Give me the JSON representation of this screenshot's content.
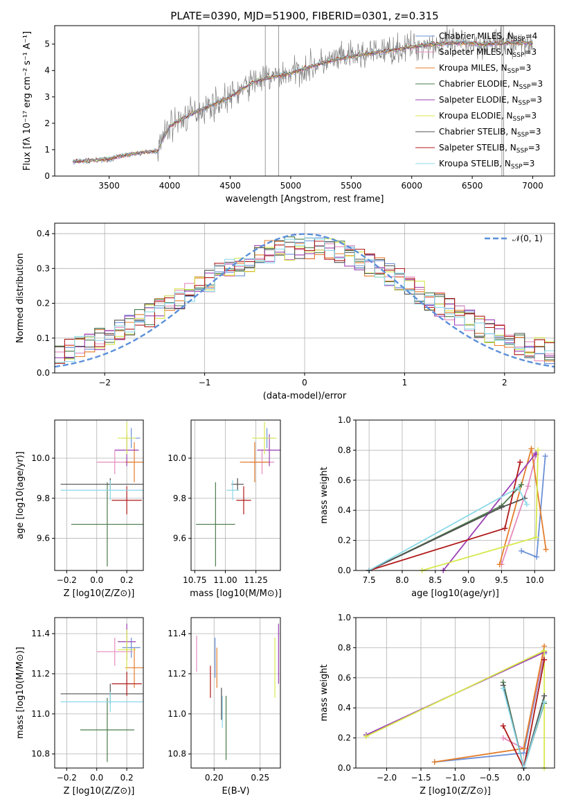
{
  "figure_title": "PLATE=0390, MJD=51900, FIBERID=0301, z=0.315",
  "colors": {
    "Chabrier MILES": "#6a8fd6",
    "Salpeter MILES": "#e48bbd",
    "Kroupa MILES": "#e37d2b",
    "Chabrier ELODIE": "#4a7a4a",
    "Salpeter ELODIE": "#9b3fb3",
    "Kroupa ELODIE": "#d6e84a",
    "Chabrier STELIB": "#505050",
    "Salpeter STELIB": "#b01818",
    "Kroupa STELIB": "#8ad8e8",
    "normal": "#5b8fd9"
  },
  "chart_data": [
    {
      "id": "spectrum",
      "type": "line",
      "title": "PLATE=0390, MJD=51900, FIBERID=0301, z=0.315",
      "xlabel": "wavelength [Angstrom, rest frame]",
      "ylabel": "Flux [fλ 10⁻¹⁷ erg cm⁻² s⁻¹ A⁻¹]",
      "xlim": [
        3050,
        7180
      ],
      "ylim": [
        0,
        5.7
      ],
      "xticks": [
        3500,
        4000,
        4500,
        5000,
        5500,
        6000,
        6500,
        7000
      ],
      "yticks": [
        0,
        1,
        2,
        3,
        4,
        5
      ],
      "grid": false,
      "legend": "top-right",
      "legend_entries": [
        "Chabrier MILES, N_SSP=4",
        "Salpeter MILES, N_SSP=3",
        "Kroupa MILES, N_SSP=3",
        "Chabrier ELODIE, N_SSP=3",
        "Salpeter ELODIE, N_SSP=3",
        "Kroupa ELODIE, N_SSP=3",
        "Chabrier STELIB, N_SSP=3",
        "Salpeter STELIB, N_SSP=3",
        "Kroupa STELIB, N_SSP=3"
      ],
      "continuum_points": {
        "x": [
          3200,
          3400,
          3500,
          3700,
          3900,
          4000,
          4200,
          4500,
          4700,
          5000,
          5200,
          5400,
          5600,
          5800,
          6000,
          6200,
          6400,
          6600,
          6800,
          7000
        ],
        "y": [
          0.55,
          0.6,
          0.65,
          0.85,
          0.95,
          1.9,
          2.4,
          3.0,
          3.6,
          3.9,
          4.2,
          4.45,
          4.6,
          4.75,
          4.9,
          5.0,
          5.05,
          5.0,
          5.05,
          5.05
        ]
      },
      "spikes": [
        {
          "x": 4240,
          "y": 5.7
        },
        {
          "x": 4790,
          "y": 5.7
        },
        {
          "x": 4900,
          "y": 5.7
        },
        {
          "x": 6745,
          "y": 5.7
        },
        {
          "x": 6760,
          "y": 5.7
        }
      ]
    },
    {
      "id": "residuals",
      "type": "step",
      "xlabel": "(data-model)/error",
      "ylabel": "Normed distribution",
      "xlim": [
        -2.5,
        2.5
      ],
      "ylim": [
        0,
        0.43
      ],
      "xticks": [
        -2,
        -1,
        0,
        1,
        2
      ],
      "yticks": [
        0.0,
        0.1,
        0.2,
        0.3,
        0.4
      ],
      "grid": true,
      "legend": "top-right",
      "legend_entries": [
        "𝒩(0, 1)"
      ]
    },
    {
      "id": "age_vs_Z",
      "type": "errorbar",
      "xlabel": "Z [log10(Z/Z⊙)]",
      "ylabel": "age [log10(age/yr)]",
      "xlim": [
        -0.28,
        0.31
      ],
      "ylim": [
        9.44,
        10.19
      ],
      "xticks": [
        -0.2,
        0.0,
        0.2
      ],
      "yticks": [
        9.6,
        9.8,
        10.0
      ],
      "grid": true,
      "points": [
        {
          "model": "Chabrier MILES",
          "x": 0.23,
          "y": 10.1,
          "xerr": 0.06,
          "yerr": 0.05
        },
        {
          "model": "Salpeter MILES",
          "x": 0.12,
          "y": 9.98,
          "xerr": 0.12,
          "yerr": 0.06
        },
        {
          "model": "Kroupa MILES",
          "x": 0.25,
          "y": 9.98,
          "xerr": 0.06,
          "yerr": 0.1
        },
        {
          "model": "Chabrier ELODIE",
          "x": 0.07,
          "y": 9.67,
          "xerr": 0.24,
          "yerr": 0.21
        },
        {
          "model": "Salpeter ELODIE",
          "x": 0.2,
          "y": 10.04,
          "xerr": 0.08,
          "yerr": 0.08
        },
        {
          "model": "Kroupa ELODIE",
          "x": 0.2,
          "y": 10.1,
          "xerr": 0.06,
          "yerr": 0.08
        },
        {
          "model": "Chabrier STELIB",
          "x": 0.09,
          "y": 9.87,
          "xerr": 0.33,
          "yerr": 0.03
        },
        {
          "model": "Salpeter STELIB",
          "x": 0.2,
          "y": 9.79,
          "xerr": 0.1,
          "yerr": 0.07
        },
        {
          "model": "Kroupa STELIB",
          "x": 0.09,
          "y": 9.84,
          "xerr": 0.33,
          "yerr": 0.05
        }
      ]
    },
    {
      "id": "age_vs_mass",
      "type": "errorbar",
      "xlabel": "mass [log10(M/M⊙)]",
      "ylabel": "",
      "xlim": [
        10.72,
        11.45
      ],
      "ylim": [
        9.44,
        10.19
      ],
      "xticks": [
        10.75,
        11.0,
        11.25
      ],
      "yticks": [
        9.6,
        9.8,
        10.0
      ],
      "grid": true,
      "points": [
        {
          "model": "Chabrier MILES",
          "x": 11.34,
          "y": 10.1,
          "xerr": 0.06,
          "yerr": 0.05
        },
        {
          "model": "Salpeter MILES",
          "x": 11.3,
          "y": 9.98,
          "xerr": 0.1,
          "yerr": 0.06
        },
        {
          "model": "Kroupa MILES",
          "x": 11.24,
          "y": 9.98,
          "xerr": 0.12,
          "yerr": 0.1
        },
        {
          "model": "Chabrier ELODIE",
          "x": 10.92,
          "y": 9.67,
          "xerr": 0.16,
          "yerr": 0.21
        },
        {
          "model": "Salpeter ELODIE",
          "x": 11.36,
          "y": 10.04,
          "xerr": 0.1,
          "yerr": 0.08
        },
        {
          "model": "Kroupa ELODIE",
          "x": 11.32,
          "y": 10.1,
          "xerr": 0.1,
          "yerr": 0.08
        },
        {
          "model": "Chabrier STELIB",
          "x": 11.1,
          "y": 9.87,
          "xerr": 0.05,
          "yerr": 0.03
        },
        {
          "model": "Salpeter STELIB",
          "x": 11.15,
          "y": 9.79,
          "xerr": 0.06,
          "yerr": 0.07
        },
        {
          "model": "Kroupa STELIB",
          "x": 11.06,
          "y": 9.84,
          "xerr": 0.05,
          "yerr": 0.05
        }
      ]
    },
    {
      "id": "mass_weight_vs_age",
      "type": "line",
      "xlabel": "age [log10(age/yr)]",
      "ylabel": "mass weight",
      "xlim": [
        7.3,
        10.3
      ],
      "ylim": [
        0,
        1.0
      ],
      "xticks": [
        7.5,
        8.0,
        8.5,
        9.0,
        9.5,
        10.0
      ],
      "yticks": [
        0.0,
        0.2,
        0.4,
        0.6,
        0.8,
        1.0
      ],
      "grid": true,
      "series": [
        {
          "model": "Chabrier MILES",
          "x": [
            9.8,
            10.03,
            10.16
          ],
          "y": [
            0.13,
            0.09,
            0.76
          ]
        },
        {
          "model": "Salpeter MILES",
          "x": [
            9.5,
            9.9,
            10.02
          ],
          "y": [
            0.04,
            0.56,
            0.77
          ]
        },
        {
          "model": "Kroupa MILES",
          "x": [
            9.47,
            9.95,
            10.17
          ],
          "y": [
            0.04,
            0.81,
            0.14
          ]
        },
        {
          "model": "Chabrier ELODIE",
          "x": [
            7.5,
            9.5,
            9.8
          ],
          "y": [
            0.0,
            0.43,
            0.57
          ]
        },
        {
          "model": "Salpeter ELODIE",
          "x": [
            8.62,
            10.02,
            10.02
          ],
          "y": [
            0.0,
            0.78,
            0.77
          ]
        },
        {
          "model": "Kroupa ELODIE",
          "x": [
            8.3,
            10.02,
            10.05
          ],
          "y": [
            0.0,
            0.22,
            0.8
          ]
        },
        {
          "model": "Chabrier STELIB",
          "x": [
            7.5,
            9.5,
            9.85
          ],
          "y": [
            0.0,
            0.42,
            0.48
          ]
        },
        {
          "model": "Salpeter STELIB",
          "x": [
            7.5,
            9.55,
            9.78
          ],
          "y": [
            0.0,
            0.28,
            0.72
          ]
        },
        {
          "model": "Kroupa STELIB",
          "x": [
            7.5,
            9.75,
            9.88
          ],
          "y": [
            0.0,
            0.55,
            0.44
          ]
        }
      ]
    },
    {
      "id": "mass_vs_Z",
      "type": "errorbar",
      "xlabel": "Z [log10(Z/Z⊙)]",
      "ylabel": "mass [log10(M/M⊙)]",
      "xlim": [
        -0.28,
        0.31
      ],
      "ylim": [
        10.73,
        11.48
      ],
      "xticks": [
        -0.2,
        0.0,
        0.2
      ],
      "yticks": [
        10.8,
        11.0,
        11.2,
        11.4
      ],
      "grid": true,
      "points": [
        {
          "model": "Chabrier MILES",
          "x": 0.23,
          "y": 11.33,
          "xerr": 0.06,
          "yerr": 0.05
        },
        {
          "model": "Salpeter MILES",
          "x": 0.12,
          "y": 11.31,
          "xerr": 0.12,
          "yerr": 0.07
        },
        {
          "model": "Kroupa MILES",
          "x": 0.25,
          "y": 11.23,
          "xerr": 0.06,
          "yerr": 0.1
        },
        {
          "model": "Chabrier ELODIE",
          "x": 0.07,
          "y": 10.92,
          "xerr": 0.18,
          "yerr": 0.16
        },
        {
          "model": "Salpeter ELODIE",
          "x": 0.2,
          "y": 11.36,
          "xerr": 0.06,
          "yerr": 0.09
        },
        {
          "model": "Kroupa ELODIE",
          "x": 0.2,
          "y": 11.32,
          "xerr": 0.06,
          "yerr": 0.1
        },
        {
          "model": "Chabrier STELIB",
          "x": 0.09,
          "y": 11.1,
          "xerr": 0.33,
          "yerr": 0.05
        },
        {
          "model": "Salpeter STELIB",
          "x": 0.2,
          "y": 11.15,
          "xerr": 0.1,
          "yerr": 0.06
        },
        {
          "model": "Kroupa STELIB",
          "x": 0.09,
          "y": 11.06,
          "xerr": 0.33,
          "yerr": 0.05
        }
      ]
    },
    {
      "id": "mass_vs_ebv",
      "type": "errorbar",
      "xlabel": "E(B-V)",
      "ylabel": "",
      "xlim": [
        0.175,
        0.272
      ],
      "ylim": [
        10.73,
        11.48
      ],
      "xticks": [
        0.2,
        0.25
      ],
      "yticks": [
        10.8,
        11.0,
        11.2,
        11.4
      ],
      "grid": true,
      "points": [
        {
          "model": "Chabrier MILES",
          "x": 0.201,
          "y": 11.28,
          "xerr": 0,
          "yerr": 0.1
        },
        {
          "model": "Salpeter MILES",
          "x": 0.181,
          "y": 11.3,
          "xerr": 0,
          "yerr": 0.09
        },
        {
          "model": "Kroupa MILES",
          "x": 0.203,
          "y": 11.23,
          "xerr": 0,
          "yerr": 0.1
        },
        {
          "model": "Chabrier ELODIE",
          "x": 0.213,
          "y": 10.93,
          "xerr": 0,
          "yerr": 0.16
        },
        {
          "model": "Salpeter ELODIE",
          "x": 0.27,
          "y": 11.3,
          "xerr": 0,
          "yerr": 0.15
        },
        {
          "model": "Kroupa ELODIE",
          "x": 0.266,
          "y": 11.23,
          "xerr": 0,
          "yerr": 0.15
        },
        {
          "model": "Chabrier STELIB",
          "x": 0.208,
          "y": 11.05,
          "xerr": 0,
          "yerr": 0.08
        },
        {
          "model": "Salpeter STELIB",
          "x": 0.196,
          "y": 11.16,
          "xerr": 0,
          "yerr": 0.08
        },
        {
          "model": "Kroupa STELIB",
          "x": 0.209,
          "y": 11.01,
          "xerr": 0,
          "yerr": 0.08
        }
      ]
    },
    {
      "id": "mass_weight_vs_Z",
      "type": "line",
      "xlabel": "Z [log10(Z/Z⊙)]",
      "ylabel": "mass weight",
      "xlim": [
        -2.45,
        0.45
      ],
      "ylim": [
        0,
        1.0
      ],
      "xticks": [
        -2.0,
        -1.5,
        -1.0,
        -0.5,
        0.0
      ],
      "yticks": [
        0.0,
        0.2,
        0.4,
        0.6,
        0.8,
        1.0
      ],
      "grid": true,
      "series": [
        {
          "model": "Chabrier MILES",
          "x": [
            -1.3,
            0.0,
            0.3
          ],
          "y": [
            0.04,
            0.1,
            0.76
          ]
        },
        {
          "model": "Salpeter MILES",
          "x": [
            -0.3,
            0.0,
            0.3
          ],
          "y": [
            0.2,
            0.13,
            0.77
          ]
        },
        {
          "model": "Kroupa MILES",
          "x": [
            -1.3,
            0.0,
            0.3
          ],
          "y": [
            0.04,
            0.13,
            0.81
          ]
        },
        {
          "model": "Chabrier ELODIE",
          "x": [
            -0.3,
            0.0,
            0.3
          ],
          "y": [
            0.57,
            0.0,
            0.43
          ]
        },
        {
          "model": "Salpeter ELODIE",
          "x": [
            -2.3,
            0.3,
            0.3
          ],
          "y": [
            0.22,
            0.77,
            0.77
          ]
        },
        {
          "model": "Kroupa ELODIE",
          "x": [
            -2.3,
            0.3,
            0.3
          ],
          "y": [
            0.21,
            0.78,
            0.0
          ]
        },
        {
          "model": "Chabrier STELIB",
          "x": [
            -0.3,
            0.0,
            0.3
          ],
          "y": [
            0.55,
            0.0,
            0.48
          ]
        },
        {
          "model": "Salpeter STELIB",
          "x": [
            -0.3,
            0.0,
            0.3
          ],
          "y": [
            0.28,
            0.0,
            0.72
          ]
        },
        {
          "model": "Kroupa STELIB",
          "x": [
            -0.3,
            0.0,
            0.3
          ],
          "y": [
            0.53,
            0.0,
            0.44
          ]
        }
      ]
    }
  ]
}
